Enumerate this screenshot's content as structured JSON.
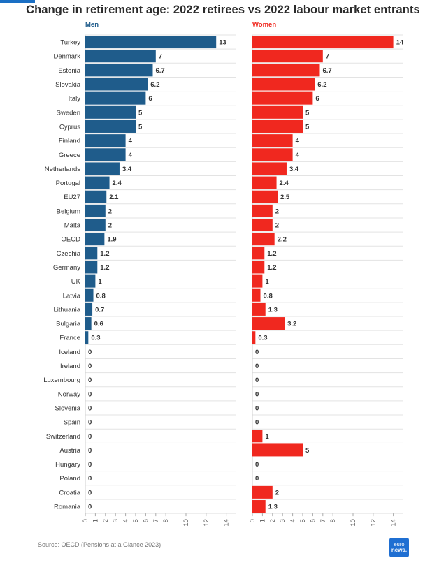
{
  "title": "Change in retirement age: 2022 retirees vs 2022 labour market entrants",
  "source": "Source: OECD (Pensions at a Glance 2023)",
  "logo": {
    "line1": "euro",
    "line2": "news."
  },
  "colors": {
    "men": "#1f5c8b",
    "women": "#f0281f",
    "grid": "#e3e3e3",
    "text": "#333333",
    "axis": "#555555"
  },
  "chart_data": {
    "type": "bar",
    "orientation": "horizontal",
    "title": "Change in retirement age: 2022 retirees vs 2022 labour market entrants",
    "categories": [
      "Turkey",
      "Denmark",
      "Estonia",
      "Slovakia",
      "Italy",
      "Sweden",
      "Cyprus",
      "Finland",
      "Greece",
      "Netherlands",
      "Portugal",
      "EU27",
      "Belgium",
      "Malta",
      "OECD",
      "Czechia",
      "Germany",
      "UK",
      "Latvia",
      "Lithuania",
      "Bulgaria",
      "France",
      "Iceland",
      "Ireland",
      "Luxembourg",
      "Norway",
      "Slovenia",
      "Spain",
      "Switzerland",
      "Austria",
      "Hungary",
      "Poland",
      "Croatia",
      "Romania"
    ],
    "series": [
      {
        "name": "Men",
        "values": [
          13,
          7,
          6.7,
          6.2,
          6,
          5,
          5,
          4,
          4,
          3.4,
          2.4,
          2.1,
          2,
          2,
          1.9,
          1.2,
          1.2,
          1,
          0.8,
          0.7,
          0.6,
          0.3,
          0,
          0,
          0,
          0,
          0,
          0,
          0,
          0,
          0,
          0,
          0,
          0
        ]
      },
      {
        "name": "Women",
        "values": [
          14,
          7,
          6.7,
          6.2,
          6,
          5,
          5,
          4,
          4,
          3.4,
          2.4,
          2.5,
          2,
          2,
          2.2,
          1.2,
          1.2,
          1,
          0.8,
          1.3,
          3.2,
          0.3,
          0,
          0,
          0,
          0,
          0,
          0,
          1,
          5,
          0,
          0,
          2,
          1.3
        ]
      }
    ],
    "xlim": [
      0,
      15
    ],
    "ticks": [
      0,
      1,
      2,
      3,
      4,
      5,
      6,
      7,
      8,
      10,
      12,
      14
    ],
    "grid": true
  }
}
